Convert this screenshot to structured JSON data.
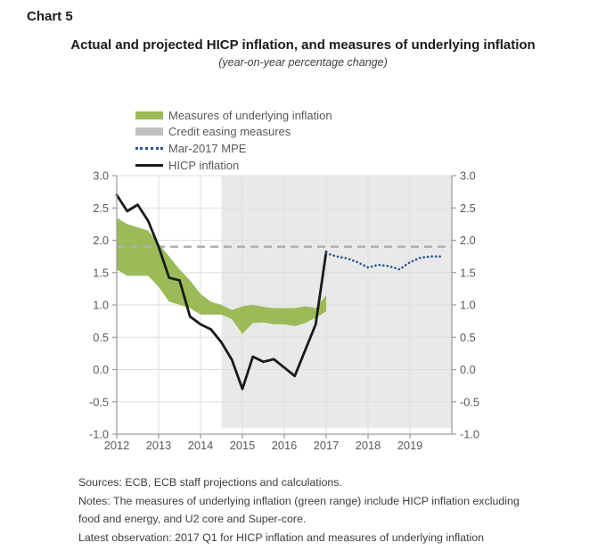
{
  "header": {
    "chart_label": "Chart 5",
    "title": "Actual and projected HICP inflation, and measures of underlying inflation",
    "subtitle": "(year-on-year percentage change)"
  },
  "legend": {
    "items": [
      {
        "label": "Measures of underlying inflation",
        "swatch": "band",
        "color": "#9BBB59"
      },
      {
        "label": "Credit easing measures",
        "swatch": "span",
        "color": "#BFBFBF"
      },
      {
        "label": "Mar-2017 MPE",
        "swatch": "dotted",
        "color": "#2A5699"
      },
      {
        "label": "HICP inflation",
        "swatch": "line",
        "color": "#1A1A1A"
      }
    ]
  },
  "chart_data": {
    "type": "line",
    "title": "Actual and projected HICP inflation, and measures of underlying inflation",
    "subtitle": "(year-on-year percentage change)",
    "x_range": [
      2012,
      2020
    ],
    "y_range": [
      -1.0,
      3.0
    ],
    "grid": true,
    "legend_position": "top",
    "x_tick_values": [
      2012,
      2013,
      2014,
      2015,
      2016,
      2017,
      2018,
      2019
    ],
    "x_tick_labels": [
      "2012",
      "2013",
      "2014",
      "2015",
      "2016",
      "2017",
      "2018",
      "2019"
    ],
    "y_tick_values": [
      3.0,
      2.5,
      2.0,
      1.5,
      1.0,
      0.5,
      0.0,
      -0.5,
      -1.0
    ],
    "y_tick_labels": [
      "3.0",
      "2.5",
      "2.0",
      "1.5",
      "1.0",
      "0.5",
      "0.0",
      "-0.5",
      "-1.0"
    ],
    "reference_line": {
      "value": 1.9,
      "style": "dashed",
      "color": "#AFAFAF"
    },
    "credit_easing_span": {
      "label": "Credit easing measures",
      "x_start": 2014.5,
      "x_end": 2020,
      "y_top": 3.0,
      "y_bottom": -0.9,
      "color": "#E9E9E9"
    },
    "series": [
      {
        "name": "Measures of underlying inflation",
        "type": "band",
        "color": "#9BBB59",
        "x": [
          2012.0,
          2012.25,
          2012.5,
          2012.75,
          2013.0,
          2013.25,
          2013.5,
          2013.75,
          2014.0,
          2014.25,
          2014.5,
          2014.75,
          2015.0,
          2015.25,
          2015.5,
          2015.75,
          2016.0,
          2016.25,
          2016.5,
          2016.75,
          2017.0
        ],
        "upper": [
          2.35,
          2.25,
          2.2,
          2.15,
          1.95,
          1.75,
          1.55,
          1.38,
          1.17,
          1.05,
          1.0,
          0.92,
          0.98,
          1.0,
          0.97,
          0.95,
          0.95,
          0.95,
          0.98,
          0.95,
          1.15
        ],
        "lower": [
          1.55,
          1.45,
          1.45,
          1.45,
          1.28,
          1.05,
          1.0,
          0.95,
          0.85,
          0.85,
          0.85,
          0.78,
          0.55,
          0.72,
          0.73,
          0.7,
          0.7,
          0.67,
          0.72,
          0.8,
          0.9
        ]
      },
      {
        "name": "HICP inflation",
        "type": "line",
        "color": "#1A1A1A",
        "x": [
          2012.0,
          2012.25,
          2012.5,
          2012.75,
          2013.0,
          2013.25,
          2013.5,
          2013.75,
          2014.0,
          2014.25,
          2014.5,
          2014.75,
          2015.0,
          2015.25,
          2015.5,
          2015.75,
          2016.0,
          2016.25,
          2016.5,
          2016.75,
          2017.0
        ],
        "values": [
          2.7,
          2.45,
          2.55,
          2.3,
          1.9,
          1.42,
          1.38,
          0.82,
          0.7,
          0.62,
          0.42,
          0.15,
          -0.3,
          0.2,
          0.12,
          0.16,
          0.03,
          -0.1,
          0.3,
          0.7,
          1.82
        ]
      },
      {
        "name": "Mar-2017 MPE",
        "type": "dotted_line",
        "color": "#2A5699",
        "x": [
          2017.0,
          2017.25,
          2017.5,
          2017.75,
          2018.0,
          2018.25,
          2018.5,
          2018.75,
          2019.0,
          2019.25,
          2019.5,
          2019.75
        ],
        "values": [
          1.8,
          1.75,
          1.72,
          1.66,
          1.58,
          1.62,
          1.6,
          1.55,
          1.66,
          1.73,
          1.75,
          1.75
        ]
      }
    ]
  },
  "footnotes": {
    "sources": "Sources: ECB, ECB staff projections and calculations.",
    "notes": "Notes: The measures of underlying inflation (green range) include HICP inflation excluding food and energy, and U2 core and Super-core.",
    "latest": "Latest observation: 2017 Q1 for HICP inflation and measures of underlying inflation"
  }
}
